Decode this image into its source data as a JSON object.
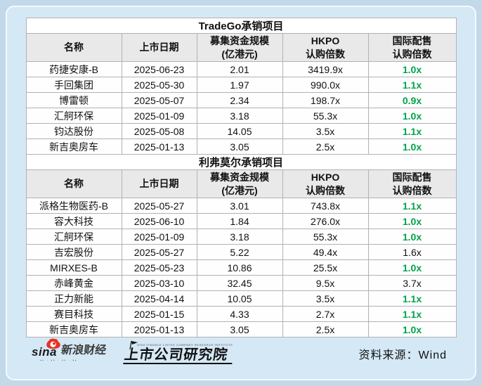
{
  "page": {
    "background_color": "#c3d8e9",
    "panel_color": "#d5e8f5",
    "source_label": "资料来源：Wind"
  },
  "branding": {
    "sina_word": "sina",
    "sina_brand": "新浪财经",
    "sina_tagline": "▪▪ · ▪▪ · ▪▪ · ▪▪",
    "institute_caption": "SINA FINANCE LISTED COMPANY RESEARCH INSTITUTE",
    "institute_name": "上市公司研究院",
    "sina_red": "#e83223",
    "highlight_green": "#00a348"
  },
  "chart_data": [
    {
      "type": "table",
      "title": "TradeGo承销项目",
      "columns": [
        [
          "名称"
        ],
        [
          "上市日期"
        ],
        [
          "募集资金规模",
          "(亿港元)"
        ],
        [
          "HKPO",
          "认购倍数"
        ],
        [
          "国际配售",
          "认购倍数"
        ]
      ],
      "rows": [
        {
          "cells": [
            "药捷安康-B",
            "2025-06-23",
            "2.01",
            "3419.9x",
            "1.0x"
          ],
          "highlight": true
        },
        {
          "cells": [
            "手回集团",
            "2025-05-30",
            "1.97",
            "990.0x",
            "1.1x"
          ],
          "highlight": true
        },
        {
          "cells": [
            "博雷顿",
            "2025-05-07",
            "2.34",
            "198.7x",
            "0.9x"
          ],
          "highlight": true
        },
        {
          "cells": [
            "汇舸环保",
            "2025-01-09",
            "3.18",
            "55.3x",
            "1.0x"
          ],
          "highlight": true
        },
        {
          "cells": [
            "钧达股份",
            "2025-05-08",
            "14.05",
            "3.5x",
            "1.1x"
          ],
          "highlight": true
        },
        {
          "cells": [
            "新吉奥房车",
            "2025-01-13",
            "3.05",
            "2.5x",
            "1.0x"
          ],
          "highlight": true
        }
      ]
    },
    {
      "type": "table",
      "title": "利弗莫尔承销项目",
      "columns": [
        [
          "名称"
        ],
        [
          "上市日期"
        ],
        [
          "募集资金规模",
          "(亿港元)"
        ],
        [
          "HKPO",
          "认购倍数"
        ],
        [
          "国际配售",
          "认购倍数"
        ]
      ],
      "rows": [
        {
          "cells": [
            "派格生物医药-B",
            "2025-05-27",
            "3.01",
            "743.8x",
            "1.1x"
          ],
          "highlight": true
        },
        {
          "cells": [
            "容大科技",
            "2025-06-10",
            "1.84",
            "276.0x",
            "1.0x"
          ],
          "highlight": true
        },
        {
          "cells": [
            "汇舸环保",
            "2025-01-09",
            "3.18",
            "55.3x",
            "1.0x"
          ],
          "highlight": true
        },
        {
          "cells": [
            "吉宏股份",
            "2025-05-27",
            "5.22",
            "49.4x",
            "1.6x"
          ],
          "highlight": false
        },
        {
          "cells": [
            "MIRXES-B",
            "2025-05-23",
            "10.86",
            "25.5x",
            "1.0x"
          ],
          "highlight": true
        },
        {
          "cells": [
            "赤峰黄金",
            "2025-03-10",
            "32.45",
            "9.5x",
            "3.7x"
          ],
          "highlight": false
        },
        {
          "cells": [
            "正力新能",
            "2025-04-14",
            "10.05",
            "3.5x",
            "1.1x"
          ],
          "highlight": true
        },
        {
          "cells": [
            "赛目科技",
            "2025-01-15",
            "4.33",
            "2.7x",
            "1.1x"
          ],
          "highlight": true
        },
        {
          "cells": [
            "新吉奥房车",
            "2025-01-13",
            "3.05",
            "2.5x",
            "1.0x"
          ],
          "highlight": true
        }
      ]
    }
  ]
}
